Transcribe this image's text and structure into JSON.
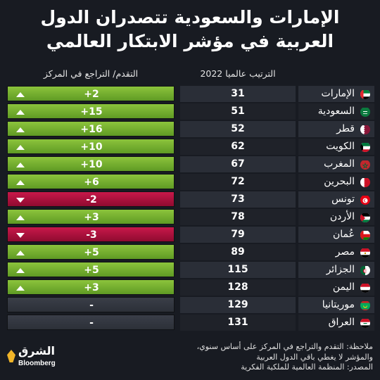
{
  "title_line1": "الإمارات والسعودية تتصدران الدول",
  "title_line2": "العربية في مؤشر الابتكار العالمي",
  "header_rank": "الترتيب عالميا 2022",
  "header_change": "التقدم/ التراجع في المركز",
  "colors": {
    "up": "#7bb534",
    "down": "#b8123f",
    "background": "#181b22"
  },
  "chart_data": {
    "type": "table",
    "columns": [
      "country",
      "rank_2022",
      "change"
    ],
    "rows": [
      {
        "country": "الإمارات",
        "rank": "31",
        "change": "+2",
        "direction": "up",
        "flag": "ae"
      },
      {
        "country": "السعودية",
        "rank": "51",
        "change": "+15",
        "direction": "up",
        "flag": "sa"
      },
      {
        "country": "قطر",
        "rank": "52",
        "change": "+16",
        "direction": "up",
        "flag": "qa"
      },
      {
        "country": "الكويت",
        "rank": "62",
        "change": "+10",
        "direction": "up",
        "flag": "kw"
      },
      {
        "country": "المغرب",
        "rank": "67",
        "change": "+10",
        "direction": "up",
        "flag": "ma"
      },
      {
        "country": "البحرين",
        "rank": "72",
        "change": "+6",
        "direction": "up",
        "flag": "bh"
      },
      {
        "country": "تونس",
        "rank": "73",
        "change": "-2",
        "direction": "down",
        "flag": "tn"
      },
      {
        "country": "الأردن",
        "rank": "78",
        "change": "+3",
        "direction": "up",
        "flag": "jo"
      },
      {
        "country": "عُمان",
        "rank": "79",
        "change": "-3",
        "direction": "down",
        "flag": "om"
      },
      {
        "country": "مصر",
        "rank": "89",
        "change": "+5",
        "direction": "up",
        "flag": "eg"
      },
      {
        "country": "الجزائر",
        "rank": "115",
        "change": "+5",
        "direction": "up",
        "flag": "dz"
      },
      {
        "country": "اليمن",
        "rank": "128",
        "change": "+3",
        "direction": "up",
        "flag": "ye"
      },
      {
        "country": "موريتانيا",
        "rank": "129",
        "change": "-",
        "direction": "none",
        "flag": "mr"
      },
      {
        "country": "العراق",
        "rank": "131",
        "change": "-",
        "direction": "none",
        "flag": "iq"
      }
    ]
  },
  "notes": {
    "line1": "ملاحظة: التقدم والتراجع في المركز على أساس سنوي،",
    "line2": "والمؤشر لا يغطي باقي الدول العربية",
    "line3": "المصدر: المنظمة العالمية للملكية الفكرية"
  },
  "logo": {
    "arabic": "الشرق",
    "bloomberg": "Bloomberg"
  }
}
